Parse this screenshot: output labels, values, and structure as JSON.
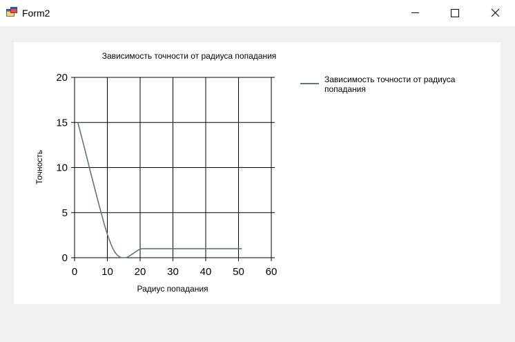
{
  "window": {
    "title": "Form2"
  },
  "icons": {
    "app": "app-form-icon",
    "minimize": "minimize-icon",
    "maximize": "maximize-icon",
    "close": "close-icon"
  },
  "chart_data": {
    "type": "line",
    "title": "Зависимость точности от радиуса попадания",
    "xlabel": "Радиус попадания",
    "ylabel": "Точность",
    "xlim": [
      0,
      60
    ],
    "ylim": [
      0,
      20
    ],
    "xticks": [
      0,
      10,
      20,
      30,
      40,
      50,
      60
    ],
    "yticks": [
      0,
      5,
      10,
      15,
      20
    ],
    "grid": true,
    "legend_position": "top-right",
    "series": [
      {
        "name": "Зависимость точности от радиуса попадания",
        "color": "#5d7a6e",
        "x": [
          1,
          3,
          5,
          7,
          9,
          10,
          11,
          12,
          13,
          14,
          15,
          16,
          17,
          18,
          19,
          20,
          21,
          25,
          30,
          35,
          40,
          45,
          50,
          51
        ],
        "y": [
          15,
          12.2,
          9.3,
          6.5,
          3.8,
          2.6,
          1.6,
          0.8,
          0.3,
          0.05,
          0,
          0.05,
          0.25,
          0.5,
          0.75,
          0.95,
          1,
          1,
          1,
          1,
          1,
          1,
          1,
          1
        ]
      }
    ]
  }
}
